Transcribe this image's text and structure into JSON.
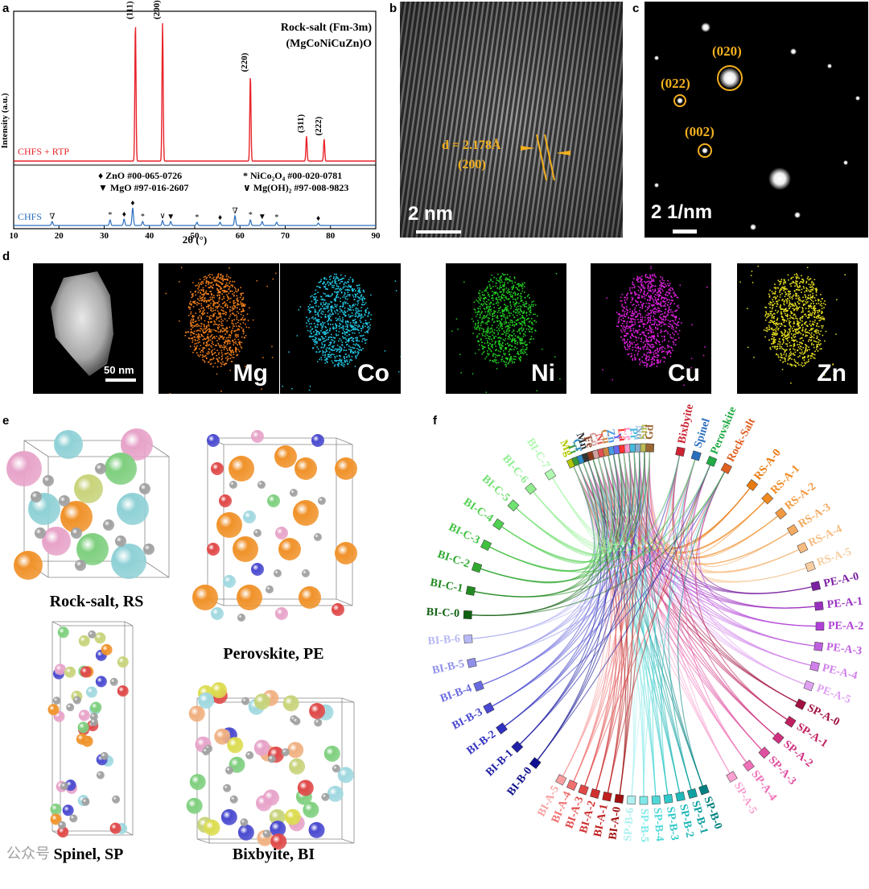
{
  "panels": {
    "a": "a",
    "b": "b",
    "c": "c",
    "d": "d",
    "e": "e",
    "f": "f"
  },
  "xrd": {
    "title_line1": "Rock-salt (Fm-3m)",
    "title_line2": "(MgCoNiCuZn)O",
    "ylabel": "Intensity (a.u.)",
    "xlabel": "2θ (°)",
    "series_top": "CHFS + RTP",
    "series_bottom": "CHFS",
    "peaks": [
      "(111)",
      "(200)",
      "(220)",
      "(311)",
      "(222)"
    ],
    "legend": [
      "♦ ZnO #00-065-0726",
      "* NiCo₂O₄ #00-020-0781",
      "▼ MgO #97-016-2607",
      "∨ Mg(OH)₂ #97-008-9823"
    ],
    "colors": {
      "top": "#e8232a",
      "bottom": "#2a6ebd"
    }
  },
  "chart_data": {
    "type": "line",
    "title": "Rock-salt (Fm-3m) (MgCoNiCuZn)O",
    "xlabel": "2θ (°)",
    "ylabel": "Intensity (a.u.)",
    "xlim": [
      10,
      90
    ],
    "xticks": [
      10,
      20,
      30,
      40,
      50,
      60,
      70,
      80,
      90
    ],
    "series": [
      {
        "name": "CHFS + RTP",
        "peaks": [
          {
            "x": 36.9,
            "label": "(111)",
            "h": 1.0
          },
          {
            "x": 42.9,
            "label": "(200)",
            "h": 1.0
          },
          {
            "x": 62.3,
            "label": "(220)",
            "h": 0.62
          },
          {
            "x": 74.7,
            "label": "(311)",
            "h": 0.18
          },
          {
            "x": 78.6,
            "label": "(222)",
            "h": 0.16
          }
        ]
      },
      {
        "name": "CHFS",
        "peaks": [
          {
            "x": 18.5,
            "h": 0.05
          },
          {
            "x": 31.3,
            "h": 0.07
          },
          {
            "x": 34.4,
            "h": 0.08
          },
          {
            "x": 36.3,
            "h": 0.22
          },
          {
            "x": 38.5,
            "h": 0.05
          },
          {
            "x": 42.9,
            "h": 0.06
          },
          {
            "x": 44.7,
            "h": 0.05
          },
          {
            "x": 50.5,
            "h": 0.04
          },
          {
            "x": 55.6,
            "h": 0.04
          },
          {
            "x": 58.9,
            "h": 0.12
          },
          {
            "x": 62.3,
            "h": 0.07
          },
          {
            "x": 64.9,
            "h": 0.05
          },
          {
            "x": 68.1,
            "h": 0.04
          },
          {
            "x": 77.3,
            "h": 0.03
          }
        ]
      }
    ]
  },
  "hrtem": {
    "d_label": "d = 2.178Å",
    "plane": "(200)",
    "scale": "2 nm"
  },
  "saed": {
    "spots": [
      "(020)",
      "(022)",
      "(002)"
    ],
    "scale": "2 1/nm"
  },
  "eds": {
    "scale": "50 nm",
    "elements": [
      "Mg",
      "Co",
      "Ni",
      "Cu",
      "Zn"
    ],
    "colors": [
      "#f07f1c",
      "#22c8e6",
      "#22cc22",
      "#e020e0",
      "#e8e020"
    ]
  },
  "structures": {
    "rs": "Rock-salt, RS",
    "pe": "Perovskite, PE",
    "sp": "Spinel, SP",
    "bi": "Bixbyite, BI"
  },
  "chord": {
    "top_labels": [
      "Mg",
      "Ti",
      "Cr",
      "Mn",
      "Fe",
      "Co",
      "Ni",
      "Cu",
      "Zn",
      "Y",
      "La",
      "Ce",
      "Pr",
      "Nd",
      "Sm",
      "Gd",
      "Bixbyite",
      "Spinel",
      "Perovskite",
      "Rock-Salt"
    ],
    "top_colors": [
      "#b4c800",
      "#3a9a3a",
      "#2a8ac8",
      "#333",
      "#8a3a1a",
      "#d0a0a0",
      "#e05050",
      "#cc8844",
      "#4a9ae0",
      "#6a6af0",
      "#ff3333",
      "#ff99cc",
      "#44bbdd",
      "#88aacc",
      "#bbbb55",
      "#996633",
      "#cc2233",
      "#2a6ebd",
      "#22aa44",
      "#e06020"
    ],
    "right_labels": [
      "RS-A-0",
      "RS-A-1",
      "RS-A-2",
      "RS-A-3",
      "RS-A-4",
      "RS-A-5",
      "PE-A-0",
      "PE-A-1",
      "PE-A-2",
      "PE-A-3",
      "PE-A-4",
      "PE-A-5",
      "SP-A-0",
      "SP-A-1",
      "SP-A-2",
      "SP-A-3",
      "SP-A-4",
      "SP-A-5"
    ],
    "right_colors": [
      "#e87a10",
      "#f08a20",
      "#f29a40",
      "#f3aa60",
      "#f5bb80",
      "#f8cda0",
      "#7a20a0",
      "#9a30c0",
      "#b040d8",
      "#c060e0",
      "#d080ea",
      "#e0a0f2",
      "#a01040",
      "#c02060",
      "#d03080",
      "#e050a0",
      "#f070b8",
      "#f8a0d0"
    ],
    "bottom_labels": [
      "SP-B-0",
      "SP-B-1",
      "SP-B-2",
      "SP-B-3",
      "SP-B-4",
      "SP-B-5",
      "SP-B-6",
      "BI-A-0",
      "BI-A-1",
      "BI-A-2",
      "BI-A-3",
      "BI-A-4",
      "BI-A-5"
    ],
    "bottom_colors": [
      "#008080",
      "#10a0a0",
      "#20b8b8",
      "#30c8c8",
      "#50d8d8",
      "#80e8e8",
      "#b0f0f0",
      "#a01010",
      "#c02020",
      "#d03030",
      "#e04848",
      "#f07070",
      "#f8a0a0"
    ],
    "left_labels": [
      "BI-B-0",
      "BI-B-1",
      "BI-B-2",
      "BI-B-3",
      "BI-B-4",
      "BI-B-5",
      "BI-B-6",
      "BI-C-0",
      "BI-C-1",
      "BI-C-2",
      "BI-C-3",
      "BI-C-4",
      "BI-C-5",
      "BI-C-6",
      "BI-C-7"
    ],
    "left_colors": [
      "#101090",
      "#2020a8",
      "#3030c0",
      "#4848d0",
      "#6a6ae0",
      "#9090ea",
      "#b8b8f4",
      "#106010",
      "#208a20",
      "#30a830",
      "#40c040",
      "#50d050",
      "#70e070",
      "#90ee90",
      "#b0f8b0"
    ]
  },
  "watermark": "公众号"
}
